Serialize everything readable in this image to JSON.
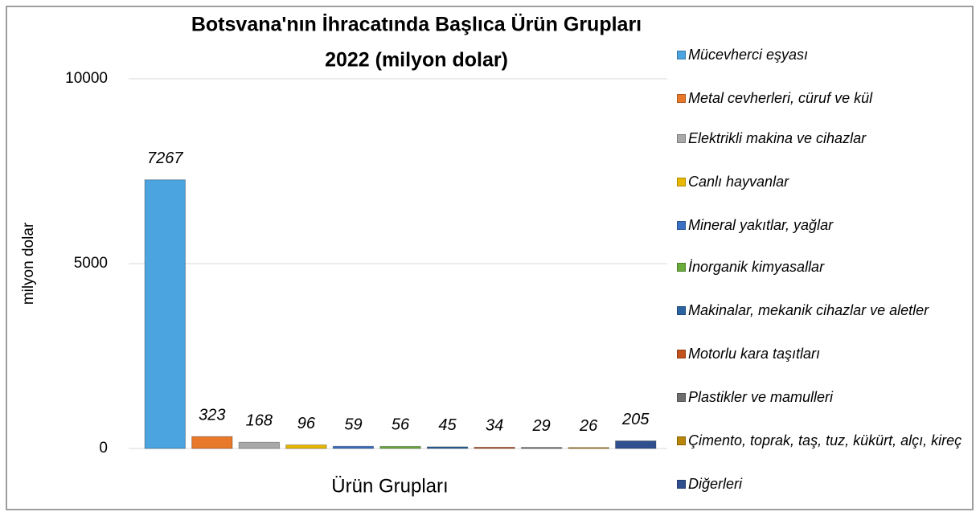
{
  "chart_data": {
    "type": "bar",
    "title": "Botsvana'nın İhracatında Başlıca Ürün Grupları",
    "subtitle": "2022 (milyon dolar)",
    "y_label": "milyon dolar",
    "x_label": "Ürün Grupları",
    "categories": [
      "Mücevherci eşyası",
      "Metal cevherleri, cüruf ve kül",
      "Elektrikli makina ve cihazlar",
      "Canlı hayvanlar",
      "Mineral yakıtlar, yağlar",
      "İnorganik kimyasallar",
      "Makinalar, mekanik cihazlar ve aletler",
      "Motorlu kara taşıtları",
      "Plastikler ve mamulleri",
      "Çimento, toprak, taş, tuz, kükürt, alçı, kireç",
      "Diğerleri"
    ],
    "values": [
      7267,
      323,
      168,
      96,
      59,
      56,
      45,
      34,
      29,
      26,
      205
    ],
    "colors": [
      "#4ba3df",
      "#e8792a",
      "#a9a9a9",
      "#e8b800",
      "#3a6fc4",
      "#6aab3c",
      "#2b64a0",
      "#c2511c",
      "#6e6e6e",
      "#b8860b",
      "#2f4f8f"
    ],
    "ylim": [
      0,
      10000
    ],
    "yticks": [
      0,
      5000,
      10000
    ],
    "grid": true
  }
}
